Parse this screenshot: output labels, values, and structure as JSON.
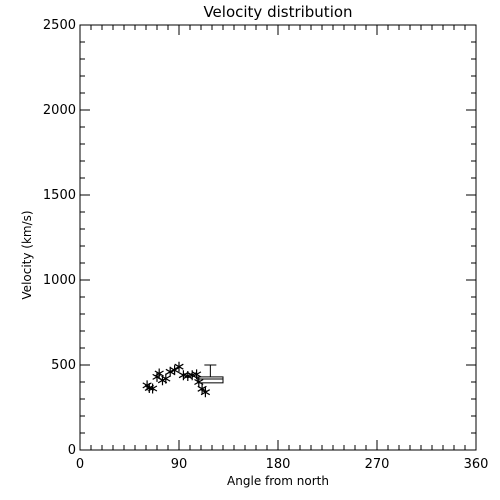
{
  "chart_data": {
    "type": "scatter",
    "title": "Velocity distribution",
    "xlabel": "Angle from north",
    "ylabel": "Velocity (km/s)",
    "xlim": [
      0,
      360
    ],
    "ylim": [
      0,
      2500
    ],
    "xticks": [
      0,
      90,
      180,
      270,
      360
    ],
    "xtick_labels": [
      "0",
      "90",
      "180",
      "270",
      "360"
    ],
    "yticks": [
      0,
      500,
      1000,
      1500,
      2000,
      2500
    ],
    "ytick_labels": [
      "0",
      "500",
      "1000",
      "1500",
      "2000",
      "2500"
    ],
    "x_minor_step": 10,
    "y_minor_step": 100,
    "grid": false,
    "marker": "asterisk",
    "points": [
      {
        "x": 61,
        "y": 380
      },
      {
        "x": 63,
        "y": 365
      },
      {
        "x": 66,
        "y": 362
      },
      {
        "x": 70,
        "y": 430
      },
      {
        "x": 72,
        "y": 450
      },
      {
        "x": 75,
        "y": 410
      },
      {
        "x": 78,
        "y": 420
      },
      {
        "x": 82,
        "y": 460
      },
      {
        "x": 86,
        "y": 470
      },
      {
        "x": 90,
        "y": 490
      },
      {
        "x": 94,
        "y": 440
      },
      {
        "x": 98,
        "y": 435
      },
      {
        "x": 102,
        "y": 440
      },
      {
        "x": 106,
        "y": 445
      },
      {
        "x": 108,
        "y": 400
      },
      {
        "x": 111,
        "y": 360
      },
      {
        "x": 114,
        "y": 340
      }
    ],
    "box": {
      "x_min": 107,
      "x_max": 130,
      "q1": 395,
      "q3": 430,
      "median": 418,
      "whisker_low": 395,
      "whisker_high": 500
    }
  }
}
